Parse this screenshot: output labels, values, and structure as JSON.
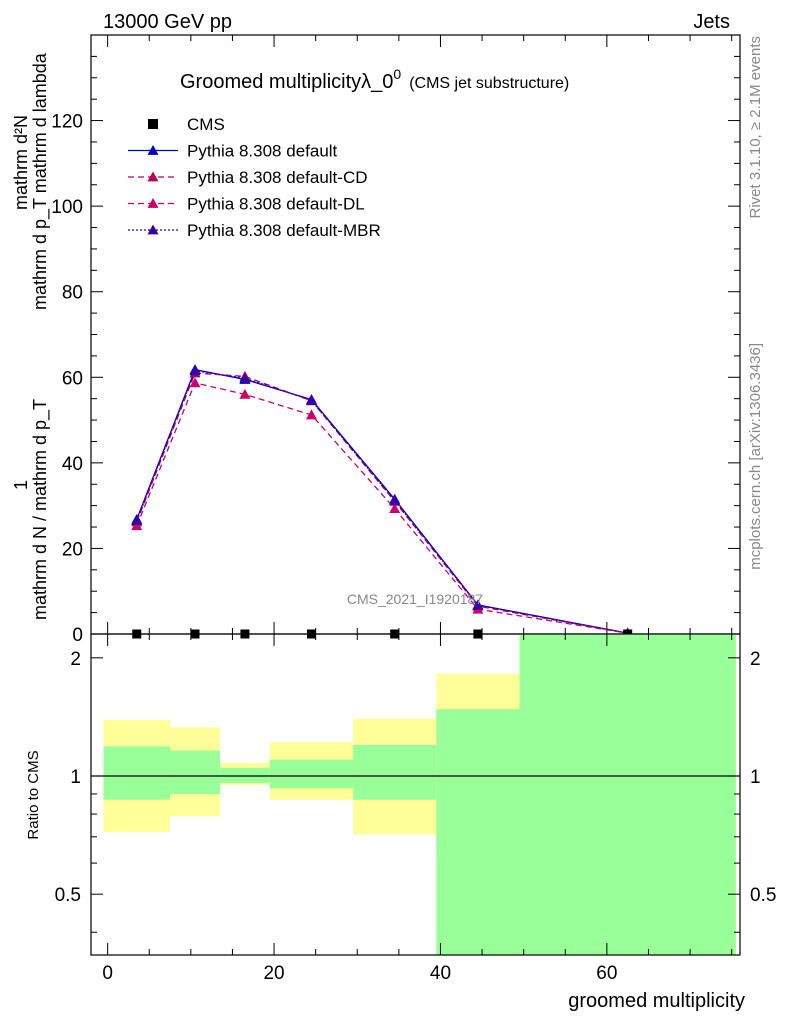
{
  "header": {
    "left": "13000 GeV pp",
    "right": "Jets"
  },
  "title": {
    "main": "Groomed multiplicityλ_0",
    "sup": "0",
    "sub": "(CMS jet substructure)"
  },
  "side_labels": {
    "rivet": "Rivet 3.1.10, ≥ 2.1M events",
    "mcplots": "mcplots.cern.ch [arXiv:1306.3436]"
  },
  "watermark": "CMS_2021_I1920187",
  "ylabel_top": {
    "numerator": "mathrm d²N",
    "denominator": "mathrm d p_T mathrm d lambda",
    "prefix_num": "1",
    "prefix_den": "mathrm d N / mathrm d p_T"
  },
  "ratio_ylabel": "Ratio to CMS",
  "xlabel": "groomed multiplicity",
  "colors": {
    "band_inner": "#99ff99",
    "band_outer": "#ffff99",
    "pythia_default": "#0000cc",
    "pythia_cd": "#b30059",
    "pythia_dl": "#cc0066",
    "pythia_mbr": "#3300aa"
  },
  "chart_data": {
    "type": "line",
    "xlim": [
      -2,
      76
    ],
    "ylim_main": [
      0,
      140
    ],
    "ylim_ratio": [
      0.35,
      2.3
    ],
    "yscale_ratio": "log",
    "main_ticks_y": [
      0,
      20,
      40,
      60,
      80,
      100,
      120
    ],
    "ratio_ticks_y": [
      0.5,
      1,
      2
    ],
    "ticks_x": [
      0,
      20,
      40,
      60
    ],
    "legend_position": "top-left",
    "cms": {
      "name": "CMS",
      "x": [
        3.5,
        10.5,
        16.5,
        24.5,
        34.5,
        44.5,
        62.5
      ],
      "y": [
        0,
        0,
        0,
        0,
        0,
        0,
        0
      ]
    },
    "series": [
      {
        "name": "Pythia 8.308 default",
        "style": "solid",
        "x": [
          3.5,
          10.5,
          16.5,
          24.5,
          34.5,
          44.5,
          62.5
        ],
        "y": [
          26.8,
          61.8,
          59.5,
          54.8,
          31.5,
          6.8,
          0.2
        ]
      },
      {
        "name": "Pythia 8.308 default-CD",
        "style": "dashed",
        "x": [
          3.5,
          10.5,
          16.5,
          24.5,
          34.5,
          44.5,
          62.5
        ],
        "y": [
          26.2,
          61.0,
          60.2,
          54.5,
          31.0,
          6.5,
          0.2
        ]
      },
      {
        "name": "Pythia 8.308 default-DL",
        "style": "dashed",
        "x": [
          3.5,
          10.5,
          16.5,
          24.5,
          34.5,
          44.5,
          62.5
        ],
        "y": [
          25.3,
          58.7,
          56.0,
          51.2,
          29.3,
          5.8,
          0.2
        ]
      },
      {
        "name": "Pythia 8.308 default-MBR",
        "style": "dotted",
        "x": [
          3.5,
          10.5,
          16.5,
          24.5,
          34.5,
          44.5,
          62.5
        ],
        "y": [
          26.5,
          61.5,
          59.8,
          54.6,
          31.2,
          6.7,
          0.2
        ]
      }
    ],
    "ratio_bands": [
      {
        "x0": -0.5,
        "x1": 7.5,
        "inner": [
          0.87,
          1.19
        ],
        "outer": [
          0.72,
          1.39
        ]
      },
      {
        "x0": 7.5,
        "x1": 13.5,
        "inner": [
          0.9,
          1.16
        ],
        "outer": [
          0.79,
          1.33
        ]
      },
      {
        "x0": 13.5,
        "x1": 19.5,
        "inner": [
          0.96,
          1.05
        ],
        "outer": [
          0.95,
          1.08
        ]
      },
      {
        "x0": 19.5,
        "x1": 29.5,
        "inner": [
          0.93,
          1.1
        ],
        "outer": [
          0.87,
          1.22
        ]
      },
      {
        "x0": 29.5,
        "x1": 39.5,
        "inner": [
          0.87,
          1.2
        ],
        "outer": [
          0.71,
          1.4
        ]
      },
      {
        "x0": 39.5,
        "x1": 49.5,
        "inner": [
          0.35,
          1.48
        ],
        "outer": [
          0.64,
          1.82
        ]
      },
      {
        "x0": 49.5,
        "x1": 75.5,
        "inner": [
          0.35,
          2.3
        ],
        "outer": [
          0.35,
          2.3
        ]
      }
    ]
  }
}
